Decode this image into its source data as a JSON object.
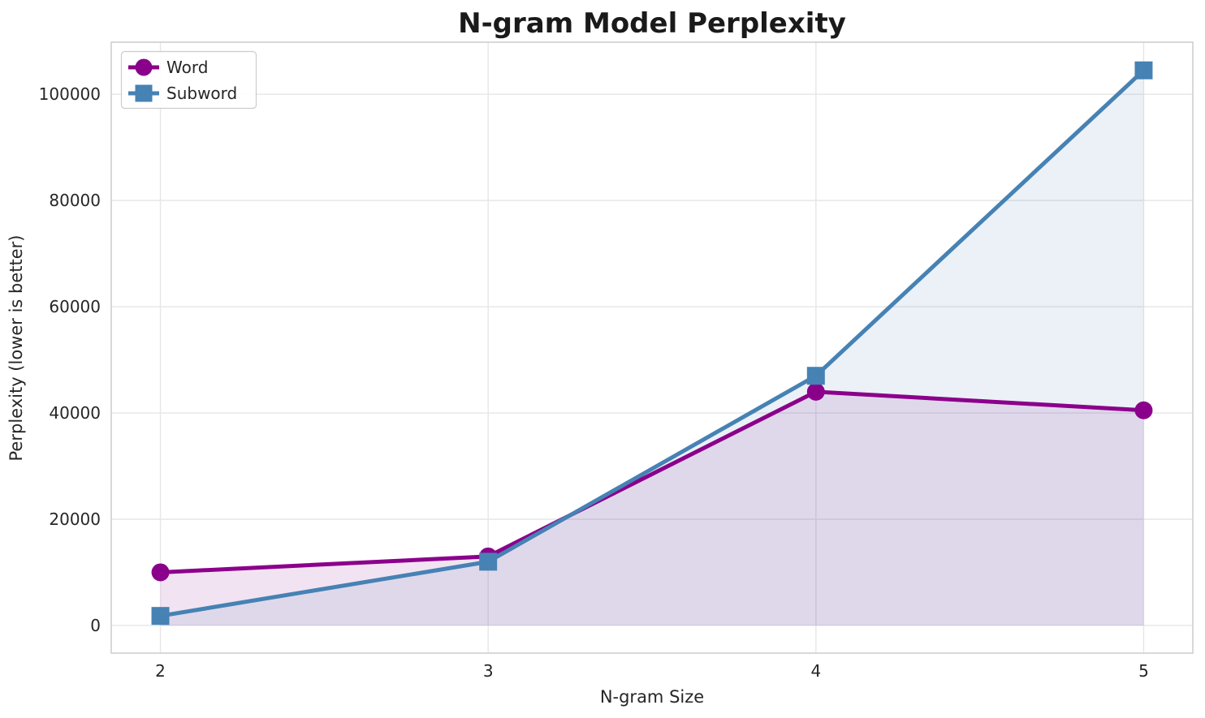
{
  "chart_data": {
    "type": "line",
    "title": "N-gram Model Perplexity",
    "xlabel": "N-gram Size",
    "ylabel": "Perplexity (lower is better)",
    "x": [
      2,
      3,
      4,
      5
    ],
    "xticks": [
      2,
      3,
      4,
      5
    ],
    "yticks": [
      0,
      20000,
      40000,
      60000,
      80000,
      100000
    ],
    "xlim": [
      1.85,
      5.15
    ],
    "ylim": [
      -5200,
      109800
    ],
    "grid": true,
    "legend_position": "upper left",
    "fill_baseline": 0,
    "fill_alpha": 0.11,
    "series": [
      {
        "name": "Word",
        "color": "#8B008B",
        "marker": "circle",
        "values": [
          10000,
          13000,
          44000,
          40500
        ]
      },
      {
        "name": "Subword",
        "color": "#4682B4",
        "marker": "square",
        "values": [
          1800,
          12000,
          47000,
          104500
        ]
      }
    ],
    "colors": {
      "background": "#ffffff",
      "grid": "#e6e6e6",
      "spine": "#cccccc",
      "text": "#262626",
      "title": "#1a1a1a",
      "legend_border": "#cccccc"
    }
  }
}
